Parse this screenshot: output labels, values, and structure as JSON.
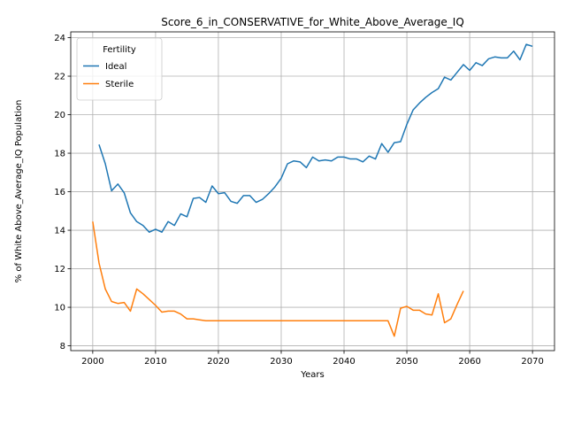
{
  "chart_data": {
    "type": "line",
    "title": "Score_6_in_CONSERVATIVE_for_White_Above_Average_IQ",
    "xlabel": "Years",
    "ylabel": "% of White Above_Average_IQ Population",
    "xlim": [
      1996.5,
      2073.5
    ],
    "ylim": [
      7.75,
      24.3
    ],
    "xticks": [
      2000,
      2010,
      2020,
      2030,
      2040,
      2050,
      2060,
      2070
    ],
    "yticks": [
      8,
      10,
      12,
      14,
      16,
      18,
      20,
      22,
      24
    ],
    "grid": true,
    "legend": {
      "title": "Fertility",
      "placement": "top-left"
    },
    "series": [
      {
        "name": "Ideal",
        "color": "#1f77b4",
        "x": [
          2001,
          2002,
          2003,
          2004,
          2005,
          2006,
          2007,
          2008,
          2009,
          2010,
          2011,
          2012,
          2013,
          2014,
          2015,
          2016,
          2017,
          2018,
          2019,
          2020,
          2021,
          2022,
          2023,
          2024,
          2025,
          2026,
          2027,
          2028,
          2029,
          2030,
          2031,
          2032,
          2033,
          2034,
          2035,
          2036,
          2037,
          2038,
          2039,
          2040,
          2041,
          2042,
          2043,
          2044,
          2045,
          2046,
          2047,
          2048,
          2049,
          2050,
          2051,
          2052,
          2053,
          2054,
          2055,
          2056,
          2057,
          2058,
          2059,
          2060,
          2061,
          2062,
          2063,
          2064,
          2065,
          2066,
          2067,
          2068,
          2069,
          2070
        ],
        "y": [
          18.45,
          17.45,
          16.05,
          16.4,
          15.95,
          14.9,
          14.45,
          14.25,
          13.9,
          14.05,
          13.9,
          14.45,
          14.25,
          14.85,
          14.7,
          15.65,
          15.7,
          15.45,
          16.3,
          15.9,
          15.95,
          15.5,
          15.4,
          15.8,
          15.8,
          15.45,
          15.6,
          15.9,
          16.25,
          16.7,
          17.45,
          17.6,
          17.55,
          17.25,
          17.8,
          17.6,
          17.65,
          17.6,
          17.8,
          17.8,
          17.7,
          17.7,
          17.55,
          17.85,
          17.7,
          18.5,
          18.05,
          18.55,
          18.6,
          19.5,
          20.25,
          20.6,
          20.9,
          21.15,
          21.35,
          21.95,
          21.8,
          22.2,
          22.6,
          22.3,
          22.7,
          22.55,
          22.9,
          23.0,
          22.95,
          22.95,
          23.3,
          22.85,
          23.65,
          23.55
        ]
      },
      {
        "name": "Sterile",
        "color": "#ff7f0e",
        "x": [
          2000,
          2001,
          2002,
          2003,
          2004,
          2005,
          2006,
          2007,
          2008,
          2009,
          2010,
          2011,
          2012,
          2013,
          2014,
          2015,
          2016,
          2017,
          2018,
          2019,
          2020,
          2021,
          2022,
          2023,
          2024,
          2025,
          2026,
          2027,
          2028,
          2029,
          2030,
          2031,
          2032,
          2033,
          2034,
          2035,
          2036,
          2037,
          2038,
          2039,
          2040,
          2041,
          2042,
          2043,
          2044,
          2045,
          2046,
          2047,
          2048,
          2049,
          2050,
          2051,
          2052,
          2053,
          2054,
          2055,
          2056,
          2057,
          2058,
          2059
        ],
        "y": [
          14.45,
          12.3,
          10.95,
          10.3,
          10.2,
          10.25,
          9.8,
          10.95,
          10.7,
          10.4,
          10.1,
          9.75,
          9.8,
          9.8,
          9.65,
          9.4,
          9.4,
          9.35,
          9.3,
          9.3,
          9.3,
          9.3,
          9.3,
          9.3,
          9.3,
          9.3,
          9.3,
          9.3,
          9.3,
          9.3,
          9.3,
          9.3,
          9.3,
          9.3,
          9.3,
          9.3,
          9.3,
          9.3,
          9.3,
          9.3,
          9.3,
          9.3,
          9.3,
          9.3,
          9.3,
          9.3,
          9.3,
          9.3,
          8.5,
          9.95,
          10.05,
          9.85,
          9.85,
          9.65,
          9.6,
          10.7,
          9.2,
          9.4,
          10.15,
          10.85
        ]
      }
    ]
  }
}
